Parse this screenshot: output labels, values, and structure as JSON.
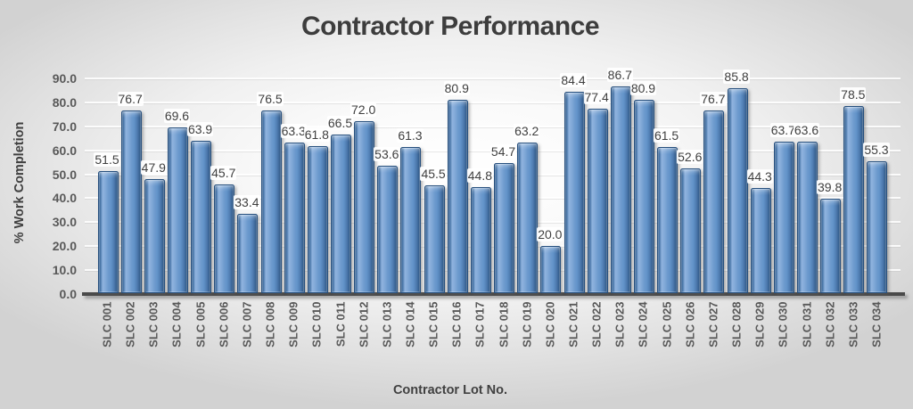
{
  "chart_data": {
    "type": "bar",
    "title": "Contractor Performance",
    "xlabel": "Contractor Lot No.",
    "ylabel": "% Work Completion",
    "ylim": [
      0,
      90
    ],
    "ytick_step": 10,
    "ytick_decimals": 1,
    "grid": true,
    "legend": "none",
    "categories": [
      "SLC 001",
      "SLC 002",
      "SLC 003",
      "SLC 004",
      "SLC 005",
      "SLC 006",
      "SLC 007",
      "SLC 008",
      "SLC 009",
      "SLC 010",
      "SLC 011",
      "SLC 012",
      "SLC 013",
      "SLC 014",
      "SLC 015",
      "SLC 016",
      "SLC 017",
      "SLC 018",
      "SLC 019",
      "SLC 020",
      "SLC 021",
      "SLC 022",
      "SLC 023",
      "SLC 024",
      "SLC 025",
      "SLC 026",
      "SLC 027",
      "SLC 028",
      "SLC 029",
      "SLC 030",
      "SLC 031",
      "SLC 032",
      "SLC 033",
      "SLC 034"
    ],
    "values": [
      51.5,
      76.7,
      47.9,
      69.6,
      63.9,
      45.7,
      33.4,
      76.5,
      63.3,
      61.8,
      66.5,
      72.0,
      53.6,
      61.3,
      45.5,
      80.9,
      44.8,
      54.7,
      63.2,
      20.0,
      84.4,
      77.4,
      86.7,
      80.9,
      61.5,
      52.6,
      76.7,
      85.8,
      44.3,
      63.7,
      63.6,
      39.8,
      78.5,
      55.3
    ],
    "colors": {
      "bar_face": "#6e9bce",
      "bar_highlight": "#8fb3de",
      "bar_edge": "#27507e",
      "title_text": "#3d3d3d",
      "tick_text": "#595959",
      "data_label_text": "#3f3f3f",
      "data_label_bg": "#ffffff",
      "axis_line": "#4a4a4a",
      "gridline": "#ffffff",
      "background_center": "#ffffff",
      "background_edge": "#d2d2d2"
    }
  }
}
